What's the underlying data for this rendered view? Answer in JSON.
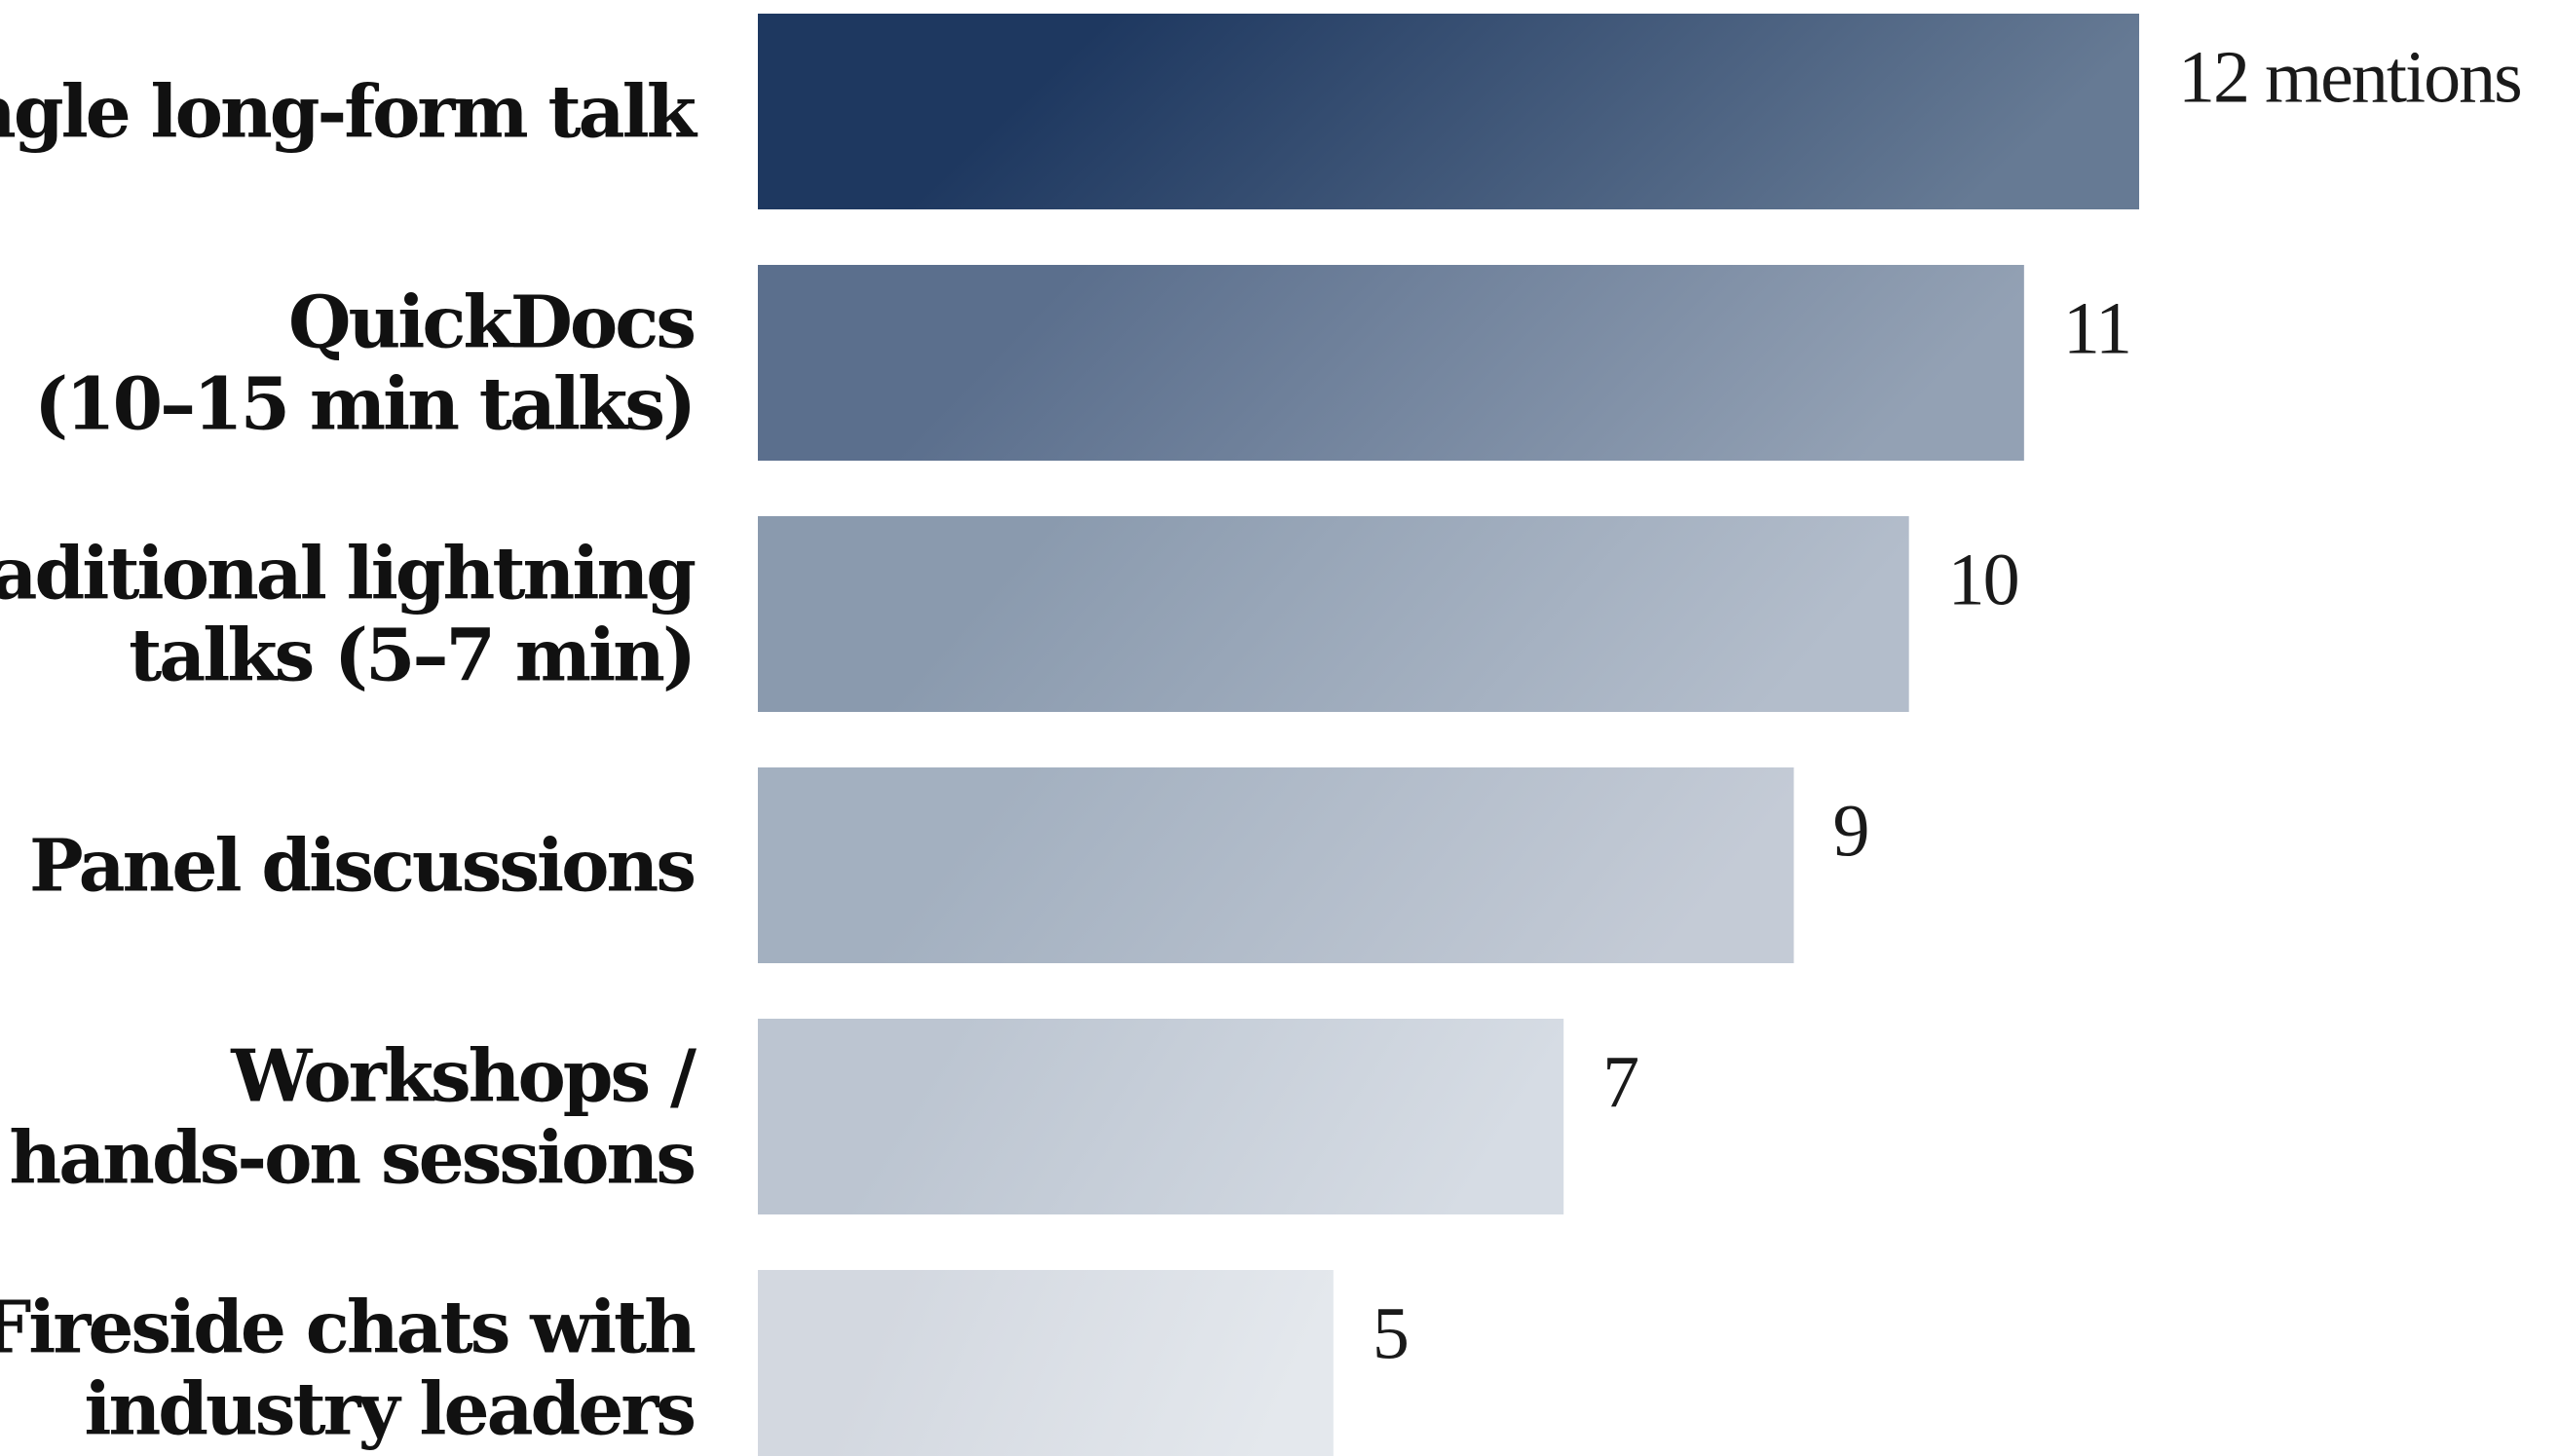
{
  "chart_data": {
    "type": "bar",
    "orientation": "horizontal",
    "categories": [
      [
        "Single long-form talk"
      ],
      [
        "QuickDocs",
        "(10–15 min talks)"
      ],
      [
        "Traditional lightning",
        "talks (5–7 min)"
      ],
      [
        "Panel discussions"
      ],
      [
        "Workshops /",
        "hands-on sessions"
      ],
      [
        "Fireside chats with",
        "industry leaders"
      ]
    ],
    "values": [
      12,
      11,
      10,
      9,
      7,
      5
    ],
    "value_labels": [
      "12 mentions",
      "11",
      "10",
      "9",
      "7",
      "5"
    ],
    "title": "",
    "xlabel": "",
    "ylabel": "",
    "xlim": [
      0,
      12
    ],
    "grid": false,
    "legend": "none",
    "colors": [
      [
        "#1e3860",
        "#667a94"
      ],
      [
        "#5b6f8d",
        "#93a1b4"
      ],
      [
        "#8a9aae",
        "#b3bdcb"
      ],
      [
        "#a3b0c0",
        "#c4cbd6"
      ],
      [
        "#bcc5d1",
        "#d6dce4"
      ],
      [
        "#d3d8e0",
        "#e4e8ed"
      ]
    ]
  }
}
